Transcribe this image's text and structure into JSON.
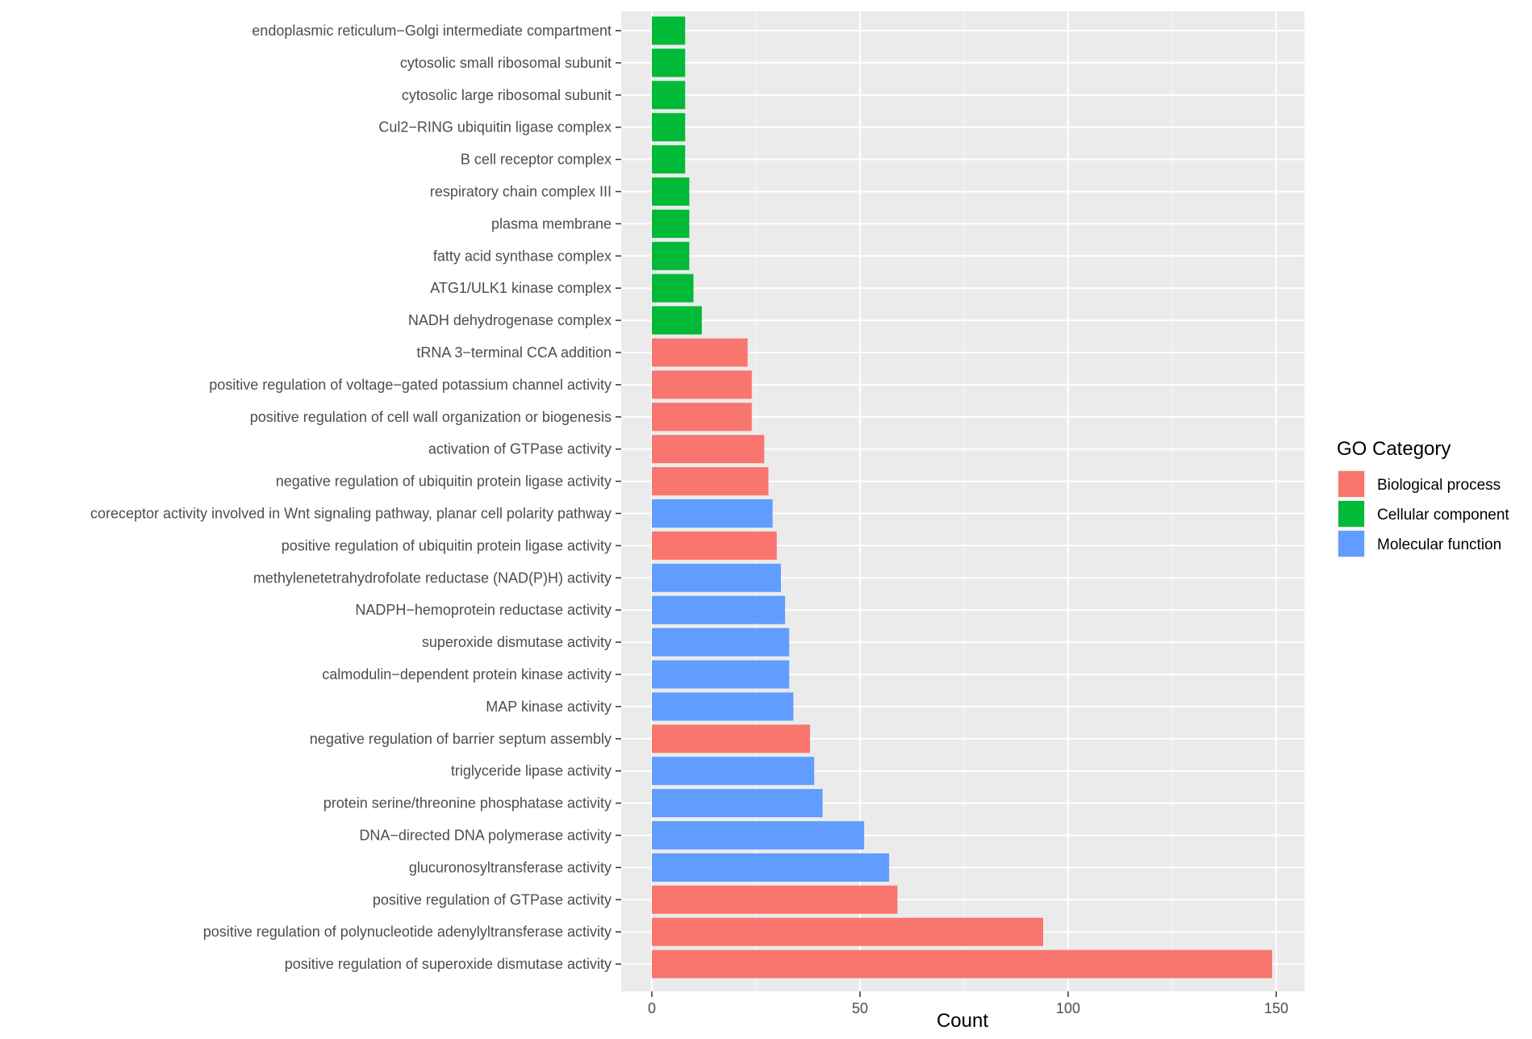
{
  "chart_data": {
    "type": "bar",
    "orientation": "horizontal",
    "title": "",
    "xlabel": "Count",
    "ylabel": "",
    "xlim": [
      0,
      157.5
    ],
    "xticks": [
      0,
      50,
      100,
      150
    ],
    "grid": true,
    "legend": {
      "title": "GO Category",
      "placement": "right",
      "entries": [
        {
          "name": "Biological process",
          "color": "#F8766D"
        },
        {
          "name": "Cellular component",
          "color": "#00BA38"
        },
        {
          "name": "Molecular function",
          "color": "#619CFF"
        }
      ]
    },
    "bars": [
      {
        "label": "endoplasmic reticulum−Golgi intermediate compartment",
        "value": 8,
        "category": "Cellular component"
      },
      {
        "label": "cytosolic small ribosomal subunit",
        "value": 8,
        "category": "Cellular component"
      },
      {
        "label": "cytosolic large ribosomal subunit",
        "value": 8,
        "category": "Cellular component"
      },
      {
        "label": "Cul2−RING ubiquitin ligase complex",
        "value": 8,
        "category": "Cellular component"
      },
      {
        "label": "B cell receptor complex",
        "value": 8,
        "category": "Cellular component"
      },
      {
        "label": "respiratory chain complex III",
        "value": 9,
        "category": "Cellular component"
      },
      {
        "label": "plasma membrane",
        "value": 9,
        "category": "Cellular component"
      },
      {
        "label": "fatty acid synthase complex",
        "value": 9,
        "category": "Cellular component"
      },
      {
        "label": "ATG1/ULK1 kinase complex",
        "value": 10,
        "category": "Cellular component"
      },
      {
        "label": "NADH dehydrogenase complex",
        "value": 12,
        "category": "Cellular component"
      },
      {
        "label": "tRNA 3−terminal CCA addition",
        "value": 23,
        "category": "Biological process"
      },
      {
        "label": "positive regulation of voltage−gated potassium channel activity",
        "value": 24,
        "category": "Biological process"
      },
      {
        "label": "positive regulation of cell wall organization or biogenesis",
        "value": 24,
        "category": "Biological process"
      },
      {
        "label": "activation of GTPase activity",
        "value": 27,
        "category": "Biological process"
      },
      {
        "label": "negative regulation of ubiquitin protein ligase activity",
        "value": 28,
        "category": "Biological process"
      },
      {
        "label": "coreceptor activity involved in Wnt signaling pathway, planar cell polarity pathway",
        "value": 29,
        "category": "Molecular function"
      },
      {
        "label": "positive regulation of ubiquitin protein ligase activity",
        "value": 30,
        "category": "Biological process"
      },
      {
        "label": "methylenetetrahydrofolate reductase (NAD(P)H) activity",
        "value": 31,
        "category": "Molecular function"
      },
      {
        "label": "NADPH−hemoprotein reductase activity",
        "value": 32,
        "category": "Molecular function"
      },
      {
        "label": "superoxide dismutase activity",
        "value": 33,
        "category": "Molecular function"
      },
      {
        "label": "calmodulin−dependent protein kinase activity",
        "value": 33,
        "category": "Molecular function"
      },
      {
        "label": "MAP kinase activity",
        "value": 34,
        "category": "Molecular function"
      },
      {
        "label": "negative regulation of barrier septum assembly",
        "value": 38,
        "category": "Biological process"
      },
      {
        "label": "triglyceride lipase activity",
        "value": 39,
        "category": "Molecular function"
      },
      {
        "label": "protein serine/threonine phosphatase activity",
        "value": 41,
        "category": "Molecular function"
      },
      {
        "label": "DNA−directed DNA polymerase activity",
        "value": 51,
        "category": "Molecular function"
      },
      {
        "label": "glucuronosyltransferase activity",
        "value": 57,
        "category": "Molecular function"
      },
      {
        "label": "positive regulation of GTPase activity",
        "value": 59,
        "category": "Biological process"
      },
      {
        "label": "positive regulation of polynucleotide adenylyltransferase activity",
        "value": 94,
        "category": "Biological process"
      },
      {
        "label": "positive regulation of superoxide dismutase activity",
        "value": 149,
        "category": "Biological process"
      }
    ]
  }
}
